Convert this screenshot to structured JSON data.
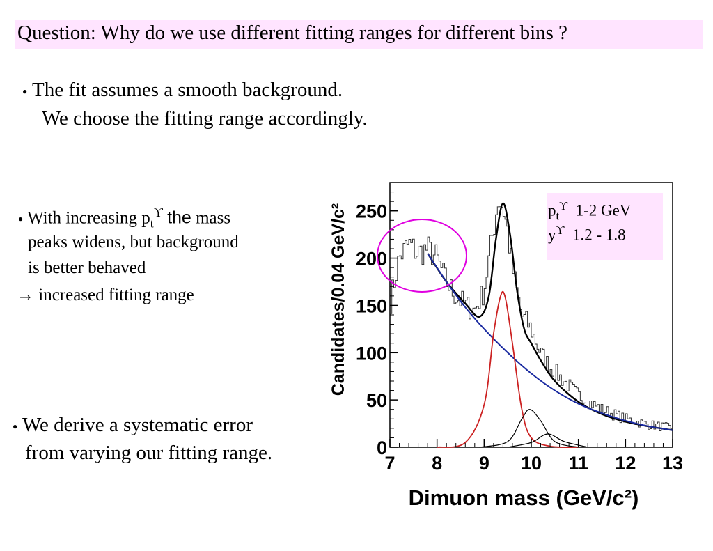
{
  "question": "Question: Why do we use different fitting ranges for different bins ?",
  "bullet1": {
    "line1": "The fit assumes a smooth background.",
    "line2": "We choose the fitting range accordingly."
  },
  "bullet2": {
    "prefix": "With increasing p",
    "sub": "t",
    "sup": "ϒ",
    "the": "the",
    "suffix": " mass",
    "line2": "peaks widens, but background",
    "line3": "is better behaved",
    "line4": "→ increased fitting range"
  },
  "bullet3": {
    "line1": "We derive a systematic error",
    "line2": "from varying our fitting range."
  },
  "bullet_glyph": "●",
  "legend": {
    "pt_base": "p",
    "pt_sub": "t",
    "pt_sup": "ϒ",
    "pt_range": "1-2 GeV",
    "y_base": "y",
    "y_sup": "ϒ",
    "y_range": "1.2 - 1.8"
  },
  "colors": {
    "banner": "#ffe4ff",
    "total_fit": "#000000",
    "background_fit": "#1a2aa0",
    "signal_1s": "#cc2222",
    "circle": "#e000e0"
  },
  "chart_data": {
    "type": "line",
    "xlabel": "Dimuon mass (GeV/c²)",
    "ylabel": "Candidates/0.04 GeV/c²",
    "xlim": [
      7,
      13
    ],
    "ylim": [
      0,
      280
    ],
    "xticks": [
      "7",
      "8",
      "9",
      "10",
      "11",
      "12",
      "13"
    ],
    "yticks": [
      "0",
      "50",
      "100",
      "150",
      "200",
      "250"
    ],
    "histogram": {
      "x": [
        7.0,
        7.2,
        7.4,
        7.6,
        7.8,
        8.0,
        8.2,
        8.4,
        8.6,
        8.8,
        9.0,
        9.2,
        9.3,
        9.4,
        9.5,
        9.6,
        9.8,
        10.0,
        10.2,
        10.4,
        10.6,
        10.8,
        11.0,
        11.5,
        12.0,
        12.5,
        13.0
      ],
      "y": [
        150,
        200,
        215,
        205,
        210,
        200,
        175,
        160,
        150,
        145,
        165,
        230,
        262,
        255,
        230,
        190,
        140,
        125,
        100,
        85,
        75,
        65,
        55,
        40,
        30,
        24,
        20
      ]
    },
    "series": [
      {
        "name": "total fit",
        "x": [
          7.8,
          8.2,
          8.6,
          8.9,
          9.1,
          9.25,
          9.4,
          9.55,
          9.7,
          9.85,
          10.0,
          10.2,
          10.5,
          11.0,
          11.5,
          12.0,
          12.5,
          13.0
        ],
        "values": [
          205,
          175,
          152,
          138,
          160,
          220,
          258,
          225,
          165,
          125,
          110,
          92,
          70,
          48,
          35,
          27,
          22,
          18
        ]
      },
      {
        "name": "background",
        "x": [
          7.8,
          8.2,
          8.6,
          9.0,
          9.5,
          10.0,
          10.5,
          11.0,
          11.5,
          12.0,
          12.5,
          13.0
        ],
        "values": [
          205,
          175,
          148,
          125,
          100,
          78,
          60,
          46,
          36,
          28,
          22,
          18
        ]
      },
      {
        "name": "signal 1S",
        "x": [
          8.0,
          8.6,
          9.0,
          9.2,
          9.35,
          9.45,
          9.6,
          9.8,
          10.0,
          10.4,
          11.0
        ],
        "values": [
          0,
          5,
          45,
          120,
          160,
          158,
          110,
          40,
          10,
          1,
          0
        ]
      },
      {
        "name": "signal 2S",
        "x": [
          8.9,
          9.5,
          9.8,
          9.97,
          10.2,
          10.5,
          11.0
        ],
        "values": [
          0,
          6,
          30,
          40,
          28,
          6,
          0
        ]
      },
      {
        "name": "signal 3S",
        "x": [
          9.5,
          10.0,
          10.35,
          10.7,
          11.2
        ],
        "values": [
          0,
          5,
          14,
          6,
          0
        ]
      }
    ]
  }
}
